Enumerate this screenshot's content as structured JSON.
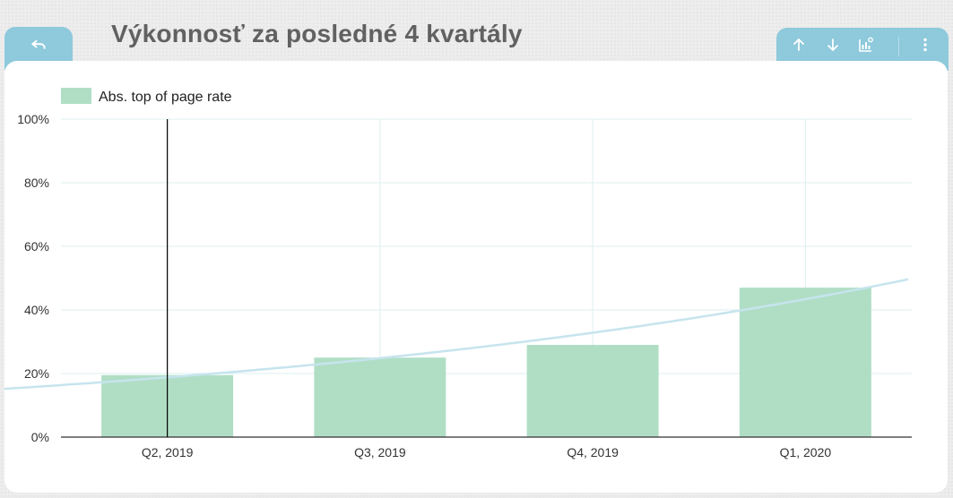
{
  "page_title": "Výkonnosť za posledné 4 kvartály",
  "icons": {
    "back": "undo-arrow-icon",
    "move_up": "arrow-up-icon",
    "move_down": "arrow-down-icon",
    "chart_settings": "chart-settings-icon",
    "more": "more-vert-icon"
  },
  "colors": {
    "header_tab": "#8ec9dc",
    "bar": "#b0dec5",
    "trendline": "#c6e4ee",
    "gridline": "#dcefef",
    "title": "#616161"
  },
  "chart_data": {
    "type": "bar",
    "categories": [
      "Q2, 2019",
      "Q3, 2019",
      "Q4, 2019",
      "Q1, 2020"
    ],
    "series": [
      {
        "name": "Abs. top of page rate",
        "values": [
          19.5,
          25,
          29,
          47
        ]
      }
    ],
    "trendline": {
      "type": "exponential"
    },
    "ylim": [
      0,
      100
    ],
    "yticks": [
      "0%",
      "20%",
      "40%",
      "60%",
      "80%",
      "100%"
    ],
    "legend_position": "top-left",
    "grid": true,
    "cursor_category": "Q2, 2019"
  }
}
